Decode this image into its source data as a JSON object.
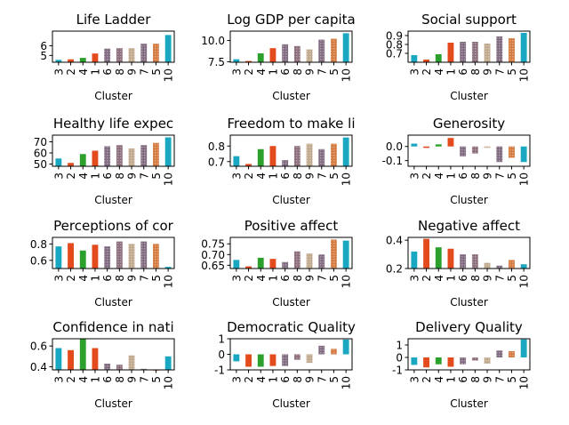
{
  "chart_data": {
    "type": "bar",
    "layout": "4x3 grid of small multiples",
    "categories": [
      "3",
      "2",
      "4",
      "1",
      "6",
      "8",
      "9",
      "7",
      "5",
      "10"
    ],
    "xlabel": "Cluster",
    "grid": false,
    "colors": [
      "#1aa7c1",
      "#e34a1c",
      "#2ca02c",
      "#e34a1c",
      "#7f6a7f",
      "#8c6d7c",
      "#c0a88c",
      "#7f6a7f",
      "#d47a3e",
      "#1aa7c1"
    ],
    "panels": [
      {
        "title": "Life Ladder",
        "ylim": [
          4.3,
          7.5
        ],
        "yticks": [
          5,
          6
        ],
        "values": [
          4.55,
          4.6,
          4.75,
          5.2,
          5.7,
          5.75,
          5.75,
          6.2,
          6.2,
          7.1
        ]
      },
      {
        "title": "Log GDP per capita",
        "ylim": [
          7.45,
          11.1
        ],
        "yticks": [
          7.5,
          10.0
        ],
        "values": [
          7.8,
          7.6,
          8.5,
          9.1,
          9.55,
          9.35,
          8.95,
          10.1,
          10.2,
          10.85
        ]
      },
      {
        "title": "Social support",
        "ylim": [
          0.6,
          0.95
        ],
        "yticks": [
          0.7,
          0.8,
          0.9
        ],
        "values": [
          0.68,
          0.63,
          0.69,
          0.82,
          0.83,
          0.83,
          0.81,
          0.89,
          0.87,
          0.93
        ]
      },
      {
        "title": "Healthy life expec",
        "ylim": [
          48,
          76
        ],
        "yticks": [
          50,
          60,
          70
        ],
        "values": [
          55,
          51,
          59,
          62,
          66,
          67,
          64,
          67,
          69,
          74
        ]
      },
      {
        "title": "Freedom to make li",
        "ylim": [
          0.67,
          0.87
        ],
        "yticks": [
          0.7,
          0.8
        ],
        "values": [
          0.735,
          0.685,
          0.78,
          0.8,
          0.71,
          0.8,
          0.815,
          0.78,
          0.815,
          0.855
        ]
      },
      {
        "title": "Generosity",
        "ylim": [
          -0.14,
          0.08
        ],
        "yticks": [
          -0.1,
          0.0
        ],
        "values": [
          0.02,
          -0.01,
          0.015,
          0.06,
          -0.07,
          -0.05,
          -0.01,
          -0.11,
          -0.08,
          -0.11
        ]
      },
      {
        "title": "Perceptions of cor",
        "ylim": [
          0.5,
          0.88
        ],
        "yticks": [
          0.6,
          0.8
        ],
        "values": [
          0.77,
          0.81,
          0.72,
          0.79,
          0.77,
          0.83,
          0.8,
          0.83,
          0.8,
          0.52
        ]
      },
      {
        "title": "Positive affect",
        "ylim": [
          0.635,
          0.78
        ],
        "yticks": [
          0.65,
          0.7,
          0.75
        ],
        "values": [
          0.675,
          0.645,
          0.685,
          0.68,
          0.665,
          0.715,
          0.705,
          0.7,
          0.77,
          0.765
        ]
      },
      {
        "title": "Negative affect",
        "ylim": [
          0.2,
          0.42
        ],
        "yticks": [
          0.2,
          0.4
        ],
        "values": [
          0.32,
          0.41,
          0.35,
          0.34,
          0.3,
          0.3,
          0.24,
          0.22,
          0.26,
          0.23
        ]
      },
      {
        "title": "Confidence in nati",
        "ylim": [
          0.37,
          0.67
        ],
        "yticks": [
          0.4,
          0.6
        ],
        "values": [
          0.58,
          0.56,
          0.67,
          0.58,
          0.43,
          0.42,
          0.51,
          0.38,
          0.37,
          0.5
        ]
      },
      {
        "title": "Democratic Quality",
        "ylim": [
          -1,
          1
        ],
        "yticks": [
          -1,
          0,
          1
        ],
        "values": [
          -0.45,
          -0.8,
          -0.8,
          -0.75,
          -0.75,
          -0.35,
          -0.55,
          0.55,
          0.35,
          0.95
        ]
      },
      {
        "title": "Delivery Quality",
        "ylim": [
          -1,
          1.5
        ],
        "yticks": [
          -1,
          0,
          1
        ],
        "values": [
          -0.6,
          -0.8,
          -0.55,
          -0.75,
          -0.55,
          -0.25,
          -0.5,
          0.55,
          0.5,
          1.45
        ]
      }
    ]
  }
}
